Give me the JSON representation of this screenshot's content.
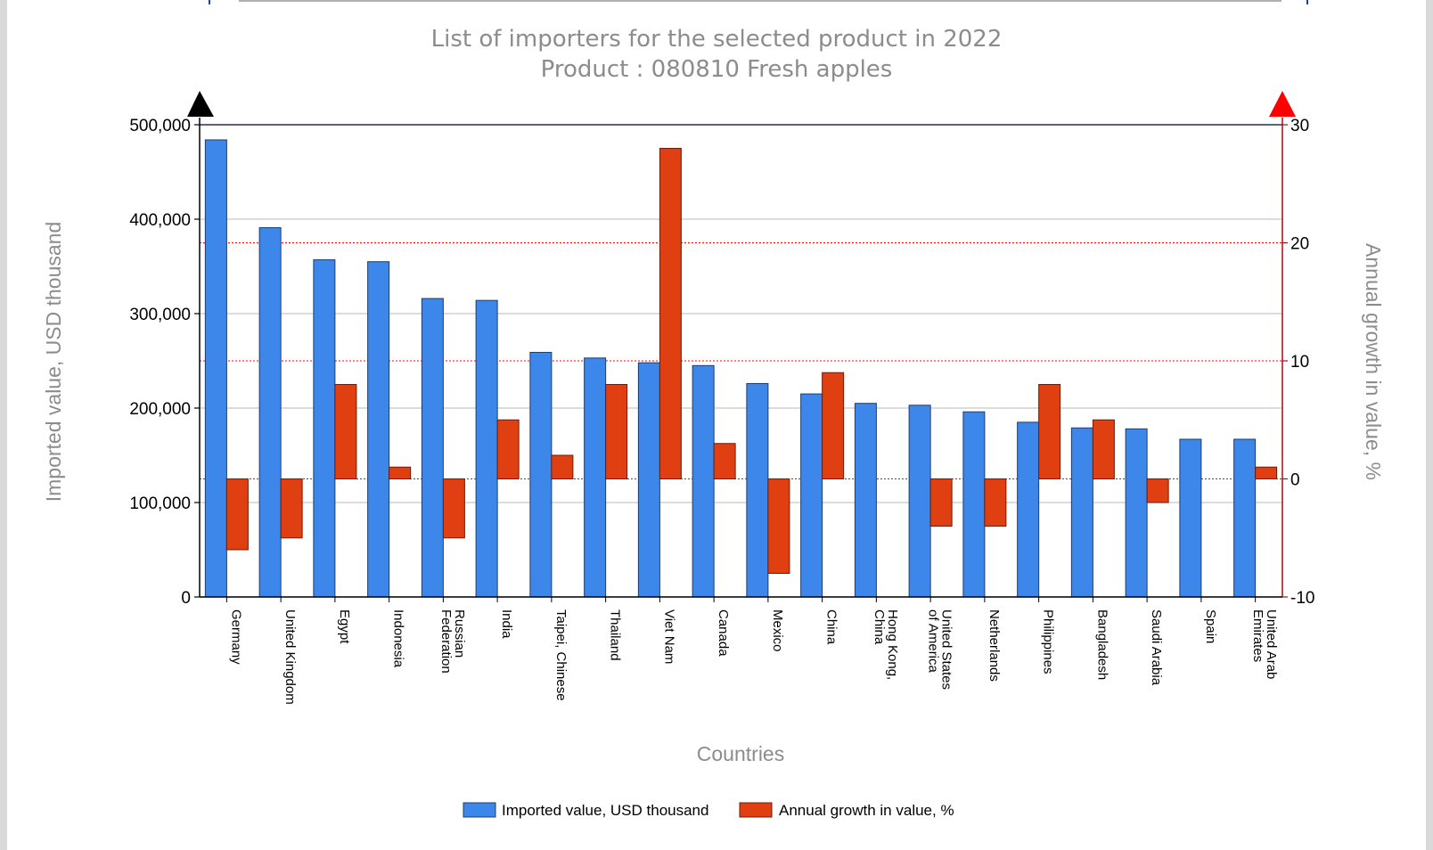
{
  "chart_data": {
    "type": "bar",
    "title": "List of importers for the selected product in 2022",
    "subtitle": "Product : 080810 Fresh apples",
    "xlabel": "Countries",
    "ylabel": "Imported value, USD thousand",
    "y2label": "Annual growth in value, %",
    "ylim": [
      0,
      500000
    ],
    "y2lim": [
      -10,
      30
    ],
    "yticks": [
      0,
      100000,
      200000,
      300000,
      400000,
      500000
    ],
    "ytick_labels": [
      "0",
      "100,000",
      "200,000",
      "300,000",
      "400,000",
      "500,000"
    ],
    "y2ticks": [
      -10,
      0,
      10,
      20,
      30
    ],
    "y2tick_labels": [
      "-10",
      "0",
      "10",
      "20",
      "30"
    ],
    "categories": [
      [
        "Germany"
      ],
      [
        "United Kingdom"
      ],
      [
        "Egypt"
      ],
      [
        "Indonesia"
      ],
      [
        "Russian",
        "Federation"
      ],
      [
        "India"
      ],
      [
        "Taipei, Chinese"
      ],
      [
        "Thailand"
      ],
      [
        "Viet Nam"
      ],
      [
        "Canada"
      ],
      [
        "Mexico"
      ],
      [
        "China"
      ],
      [
        "Hong Kong,",
        "China"
      ],
      [
        "United States",
        "of America"
      ],
      [
        "Netherlands"
      ],
      [
        "Philippines"
      ],
      [
        "Bangladesh"
      ],
      [
        "Saudi Arabia"
      ],
      [
        "Spain"
      ],
      [
        "United Arab",
        "Emirates"
      ]
    ],
    "series": [
      {
        "name": "Imported value, USD thousand",
        "axis": "left",
        "color": "#3d87ea",
        "values": [
          484000,
          391000,
          357000,
          355000,
          316000,
          314000,
          259000,
          253000,
          248000,
          245000,
          226000,
          215000,
          205000,
          203000,
          196000,
          185000,
          179000,
          178000,
          167000,
          167000
        ]
      },
      {
        "name": "Annual growth in value, %",
        "axis": "right",
        "color": "#df3f11",
        "values": [
          -6,
          -5,
          8,
          1,
          -5,
          5,
          2,
          8,
          28,
          3,
          -8,
          9,
          0,
          -4,
          -4,
          8,
          5,
          -2,
          0,
          1
        ]
      }
    ],
    "grid": true,
    "legend_position": "bottom"
  }
}
